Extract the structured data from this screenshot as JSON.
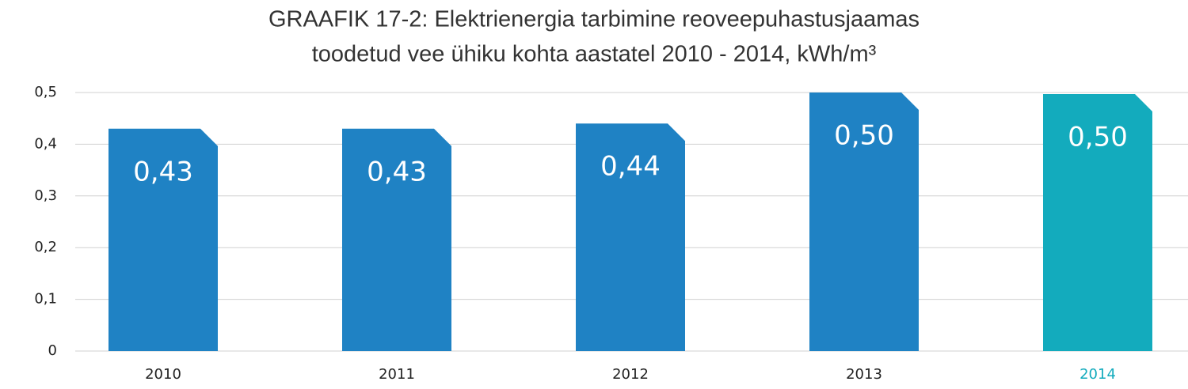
{
  "chart_data": {
    "type": "bar",
    "title": [
      "GRAAFIK 17-2: Elektrienergia tarbimine reoveepuhastusjaamas",
      "toodetud vee ühiku kohta aastatel 2010 - 2014, kWh/m³"
    ],
    "categories": [
      "2010",
      "2011",
      "2012",
      "2013",
      "2014"
    ],
    "values": [
      0.43,
      0.43,
      0.44,
      0.5,
      0.497
    ],
    "value_labels": [
      "0,43",
      "0,43",
      "0,44",
      "0,50",
      "0,50"
    ],
    "colors": [
      "#1f82c4",
      "#1f82c4",
      "#1f82c4",
      "#1f82c4",
      "#13abbd"
    ],
    "ylim": [
      0,
      0.5
    ],
    "yticks": [
      0,
      {
        "value": 0.1,
        "label": "0,1"
      },
      {
        "value": 0.2,
        "label": "0,2"
      },
      {
        "value": 0.3,
        "label": "0,3"
      },
      {
        "value": 0.4,
        "label": "0,4"
      },
      {
        "value": 0.5,
        "label": "0,5"
      }
    ],
    "grid": true
  }
}
